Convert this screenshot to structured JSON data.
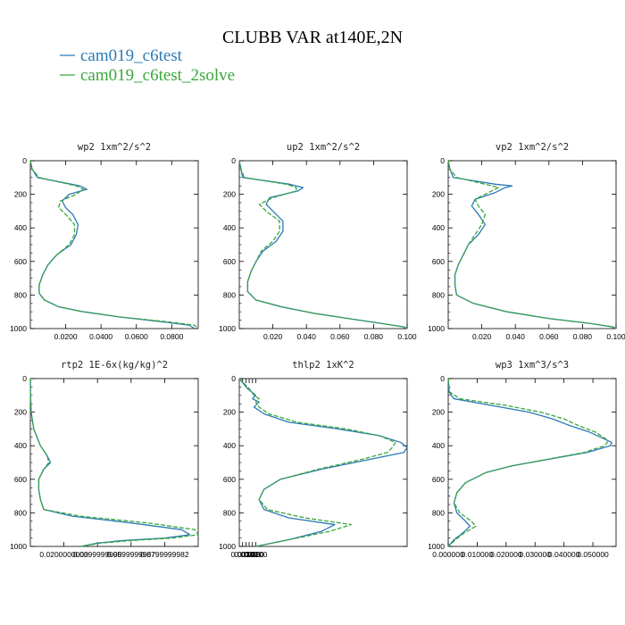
{
  "figure": {
    "title": "CLUBB VAR at140E,2N"
  },
  "colors": {
    "series1": "#2a7ab5",
    "series2": "#3aa63a"
  },
  "chart_data": [
    {
      "type": "line",
      "title": "wp2  1xm^2/s^2",
      "xlim": [
        0,
        0.0095
      ],
      "ylim": [
        1000,
        0
      ],
      "xticks": [
        "0.0200",
        "0.0400",
        "0.0600",
        "0.0800"
      ],
      "yticks": [
        "0",
        "200",
        "400",
        "600",
        "800",
        "1000"
      ],
      "y": [
        0,
        50,
        100,
        150,
        170,
        200,
        240,
        280,
        320,
        380,
        440,
        500,
        560,
        620,
        680,
        740,
        790,
        830,
        870,
        900,
        930,
        960,
        980,
        1000
      ],
      "series": [
        {
          "name": "cam019_c6test",
          "x": [
            0,
            0.0001,
            0.0004,
            0.0028,
            0.0032,
            0.0022,
            0.0018,
            0.002,
            0.0024,
            0.0027,
            0.0026,
            0.0023,
            0.0015,
            0.001,
            0.0007,
            0.0005,
            0.0005,
            0.0008,
            0.0016,
            0.003,
            0.005,
            0.0075,
            0.009,
            0.0093
          ]
        },
        {
          "name": "cam019_c6test_2solve",
          "x": [
            0,
            0.0001,
            0.0005,
            0.0026,
            0.003,
            0.0026,
            0.0017,
            0.0016,
            0.002,
            0.0025,
            0.0025,
            0.0022,
            0.0015,
            0.001,
            0.0007,
            0.0005,
            0.0005,
            0.0008,
            0.0016,
            0.003,
            0.005,
            0.0078,
            0.0093,
            0.0095
          ]
        }
      ]
    },
    {
      "type": "line",
      "title": "up2  1xm^2/s^2",
      "xlim": [
        0,
        0.1
      ],
      "ylim": [
        1000,
        0
      ],
      "xticks": [
        "0.020",
        "0.040",
        "0.060",
        "0.080",
        "0.100"
      ],
      "yticks": [
        "0",
        "200",
        "400",
        "600",
        "800",
        "1000"
      ],
      "y": [
        0,
        50,
        100,
        140,
        160,
        180,
        220,
        260,
        300,
        360,
        420,
        480,
        540,
        600,
        660,
        720,
        780,
        830,
        870,
        910,
        940,
        970,
        990,
        1000
      ],
      "series": [
        {
          "name": "cam019_c6test",
          "x": [
            0,
            0.001,
            0.002,
            0.03,
            0.038,
            0.035,
            0.018,
            0.016,
            0.02,
            0.026,
            0.026,
            0.022,
            0.014,
            0.01,
            0.007,
            0.005,
            0.005,
            0.01,
            0.025,
            0.045,
            0.065,
            0.085,
            0.098,
            0.1
          ]
        },
        {
          "name": "cam019_c6test_2solve",
          "x": [
            0,
            0.001,
            0.003,
            0.028,
            0.034,
            0.034,
            0.02,
            0.012,
            0.016,
            0.024,
            0.024,
            0.02,
            0.013,
            0.01,
            0.007,
            0.005,
            0.005,
            0.01,
            0.025,
            0.045,
            0.065,
            0.085,
            0.098,
            0.1
          ]
        }
      ]
    },
    {
      "type": "line",
      "title": "vp2  1xm^2/s^2",
      "xlim": [
        0,
        0.1
      ],
      "ylim": [
        1000,
        0
      ],
      "xticks": [
        "0.020",
        "0.040",
        "0.060",
        "0.080",
        "0.100"
      ],
      "yticks": [
        "0",
        "200",
        "400",
        "600",
        "800",
        "1000"
      ],
      "y": [
        0,
        50,
        100,
        140,
        150,
        160,
        190,
        230,
        270,
        320,
        380,
        440,
        500,
        560,
        620,
        680,
        740,
        800,
        850,
        900,
        940,
        970,
        990,
        1000
      ],
      "series": [
        {
          "name": "cam019_c6test",
          "x": [
            0,
            0.001,
            0.003,
            0.028,
            0.038,
            0.034,
            0.028,
            0.016,
            0.014,
            0.018,
            0.022,
            0.018,
            0.012,
            0.009,
            0.006,
            0.004,
            0.004,
            0.005,
            0.015,
            0.035,
            0.06,
            0.085,
            0.098,
            0.1
          ]
        },
        {
          "name": "cam019_c6test_2solve",
          "x": [
            0,
            0.001,
            0.005,
            0.022,
            0.026,
            0.03,
            0.024,
            0.016,
            0.018,
            0.022,
            0.02,
            0.016,
            0.012,
            0.009,
            0.006,
            0.004,
            0.004,
            0.005,
            0.015,
            0.035,
            0.06,
            0.085,
            0.098,
            0.1
          ]
        }
      ]
    },
    {
      "type": "line",
      "title": "rtp2  1E-6x(kg/kg)^2",
      "xlim": [
        0,
        0.0001
      ],
      "ylim": [
        1000,
        0
      ],
      "xticks": [
        "0.0200000000",
        "0.0399999998",
        "0.0599999987",
        "0.0799999982"
      ],
      "xticks_pos": [
        2e-05,
        4e-05,
        6e-05,
        8e-05
      ],
      "yticks": [
        "0",
        "200",
        "400",
        "600",
        "800",
        "1000"
      ],
      "y": [
        0,
        100,
        200,
        300,
        400,
        460,
        500,
        540,
        600,
        660,
        720,
        780,
        820,
        860,
        900,
        930,
        950,
        965,
        980,
        1000
      ],
      "series": [
        {
          "name": "cam019_c6test",
          "x": [
            0,
            1e-07,
            5e-07,
            2e-06,
            6e-06,
            1e-05,
            1.2e-05,
            8e-06,
            5e-06,
            5e-06,
            6e-06,
            8e-06,
            2.5e-05,
            6e-05,
            9e-05,
            9.5e-05,
            8e-05,
            5.5e-05,
            4e-05,
            3e-05
          ]
        },
        {
          "name": "cam019_c6test_2solve",
          "x": [
            0,
            1e-07,
            5e-07,
            2e-06,
            6e-06,
            1e-05,
            1.1e-05,
            8e-06,
            5e-06,
            5e-06,
            6e-06,
            8e-06,
            3e-05,
            7e-05,
            9.8e-05,
            0.0001,
            8.5e-05,
            6e-05,
            4.2e-05,
            3e-05
          ]
        }
      ]
    },
    {
      "type": "line",
      "title": "thlp2  1xK^2",
      "xlim": [
        0,
        0.0102
      ],
      "ylim": [
        1000,
        0
      ],
      "xticks": [
        "0.0020",
        "0.0040",
        "0.0060",
        "0.0080",
        "0.0100"
      ],
      "yticks": [
        "0",
        "200",
        "400",
        "600",
        "800",
        "1000"
      ],
      "y": [
        0,
        60,
        100,
        120,
        140,
        170,
        210,
        260,
        300,
        340,
        380,
        410,
        440,
        480,
        540,
        600,
        660,
        720,
        780,
        830,
        870,
        910,
        960,
        1000
      ],
      "series": [
        {
          "name": "cam019_c6test",
          "x": [
            0,
            0.0005,
            0.001,
            0.0008,
            0.0012,
            0.0009,
            0.0015,
            0.003,
            0.006,
            0.0085,
            0.0098,
            0.0102,
            0.01,
            0.008,
            0.005,
            0.0025,
            0.0015,
            0.0012,
            0.0015,
            0.003,
            0.0058,
            0.005,
            0.003,
            0.001
          ]
        },
        {
          "name": "cam019_c6test_2solve",
          "x": [
            0,
            0.0006,
            0.0009,
            0.0012,
            0.001,
            0.0012,
            0.0018,
            0.0035,
            0.0065,
            0.0085,
            0.0095,
            0.0093,
            0.009,
            0.0075,
            0.0048,
            0.0025,
            0.0015,
            0.0012,
            0.0017,
            0.004,
            0.0068,
            0.0055,
            0.003,
            0.001
          ]
        }
      ]
    },
    {
      "type": "line",
      "title": "wp3  1xm^3/s^3",
      "xlim": [
        0,
        0.058
      ],
      "ylim": [
        1000,
        0
      ],
      "xticks": [
        "0.000000",
        "0.010000",
        "0.020000",
        "0.030000",
        "0.040000",
        "0.050000"
      ],
      "xticks_pos": [
        0,
        0.01,
        0.02,
        0.03,
        0.04,
        0.05
      ],
      "yticks": [
        "0",
        "200",
        "400",
        "600",
        "800",
        "1000"
      ],
      "y": [
        0,
        80,
        120,
        160,
        200,
        240,
        280,
        320,
        360,
        380,
        400,
        440,
        480,
        520,
        560,
        620,
        680,
        740,
        800,
        850,
        880,
        920,
        960,
        1000
      ],
      "series": [
        {
          "name": "cam019_c6test",
          "x": [
            0,
            0.0003,
            0.002,
            0.015,
            0.028,
            0.036,
            0.042,
            0.049,
            0.054,
            0.0565,
            0.056,
            0.048,
            0.035,
            0.022,
            0.013,
            0.006,
            0.003,
            0.002,
            0.003,
            0.006,
            0.0075,
            0.005,
            0.002,
            0.0
          ]
        },
        {
          "name": "cam019_c6test_2solve",
          "x": [
            0,
            0.0005,
            0.004,
            0.02,
            0.032,
            0.04,
            0.045,
            0.051,
            0.0545,
            0.055,
            0.054,
            0.047,
            0.0345,
            0.022,
            0.013,
            0.006,
            0.003,
            0.002,
            0.004,
            0.008,
            0.0095,
            0.0055,
            0.0025,
            0.0
          ]
        }
      ]
    }
  ]
}
